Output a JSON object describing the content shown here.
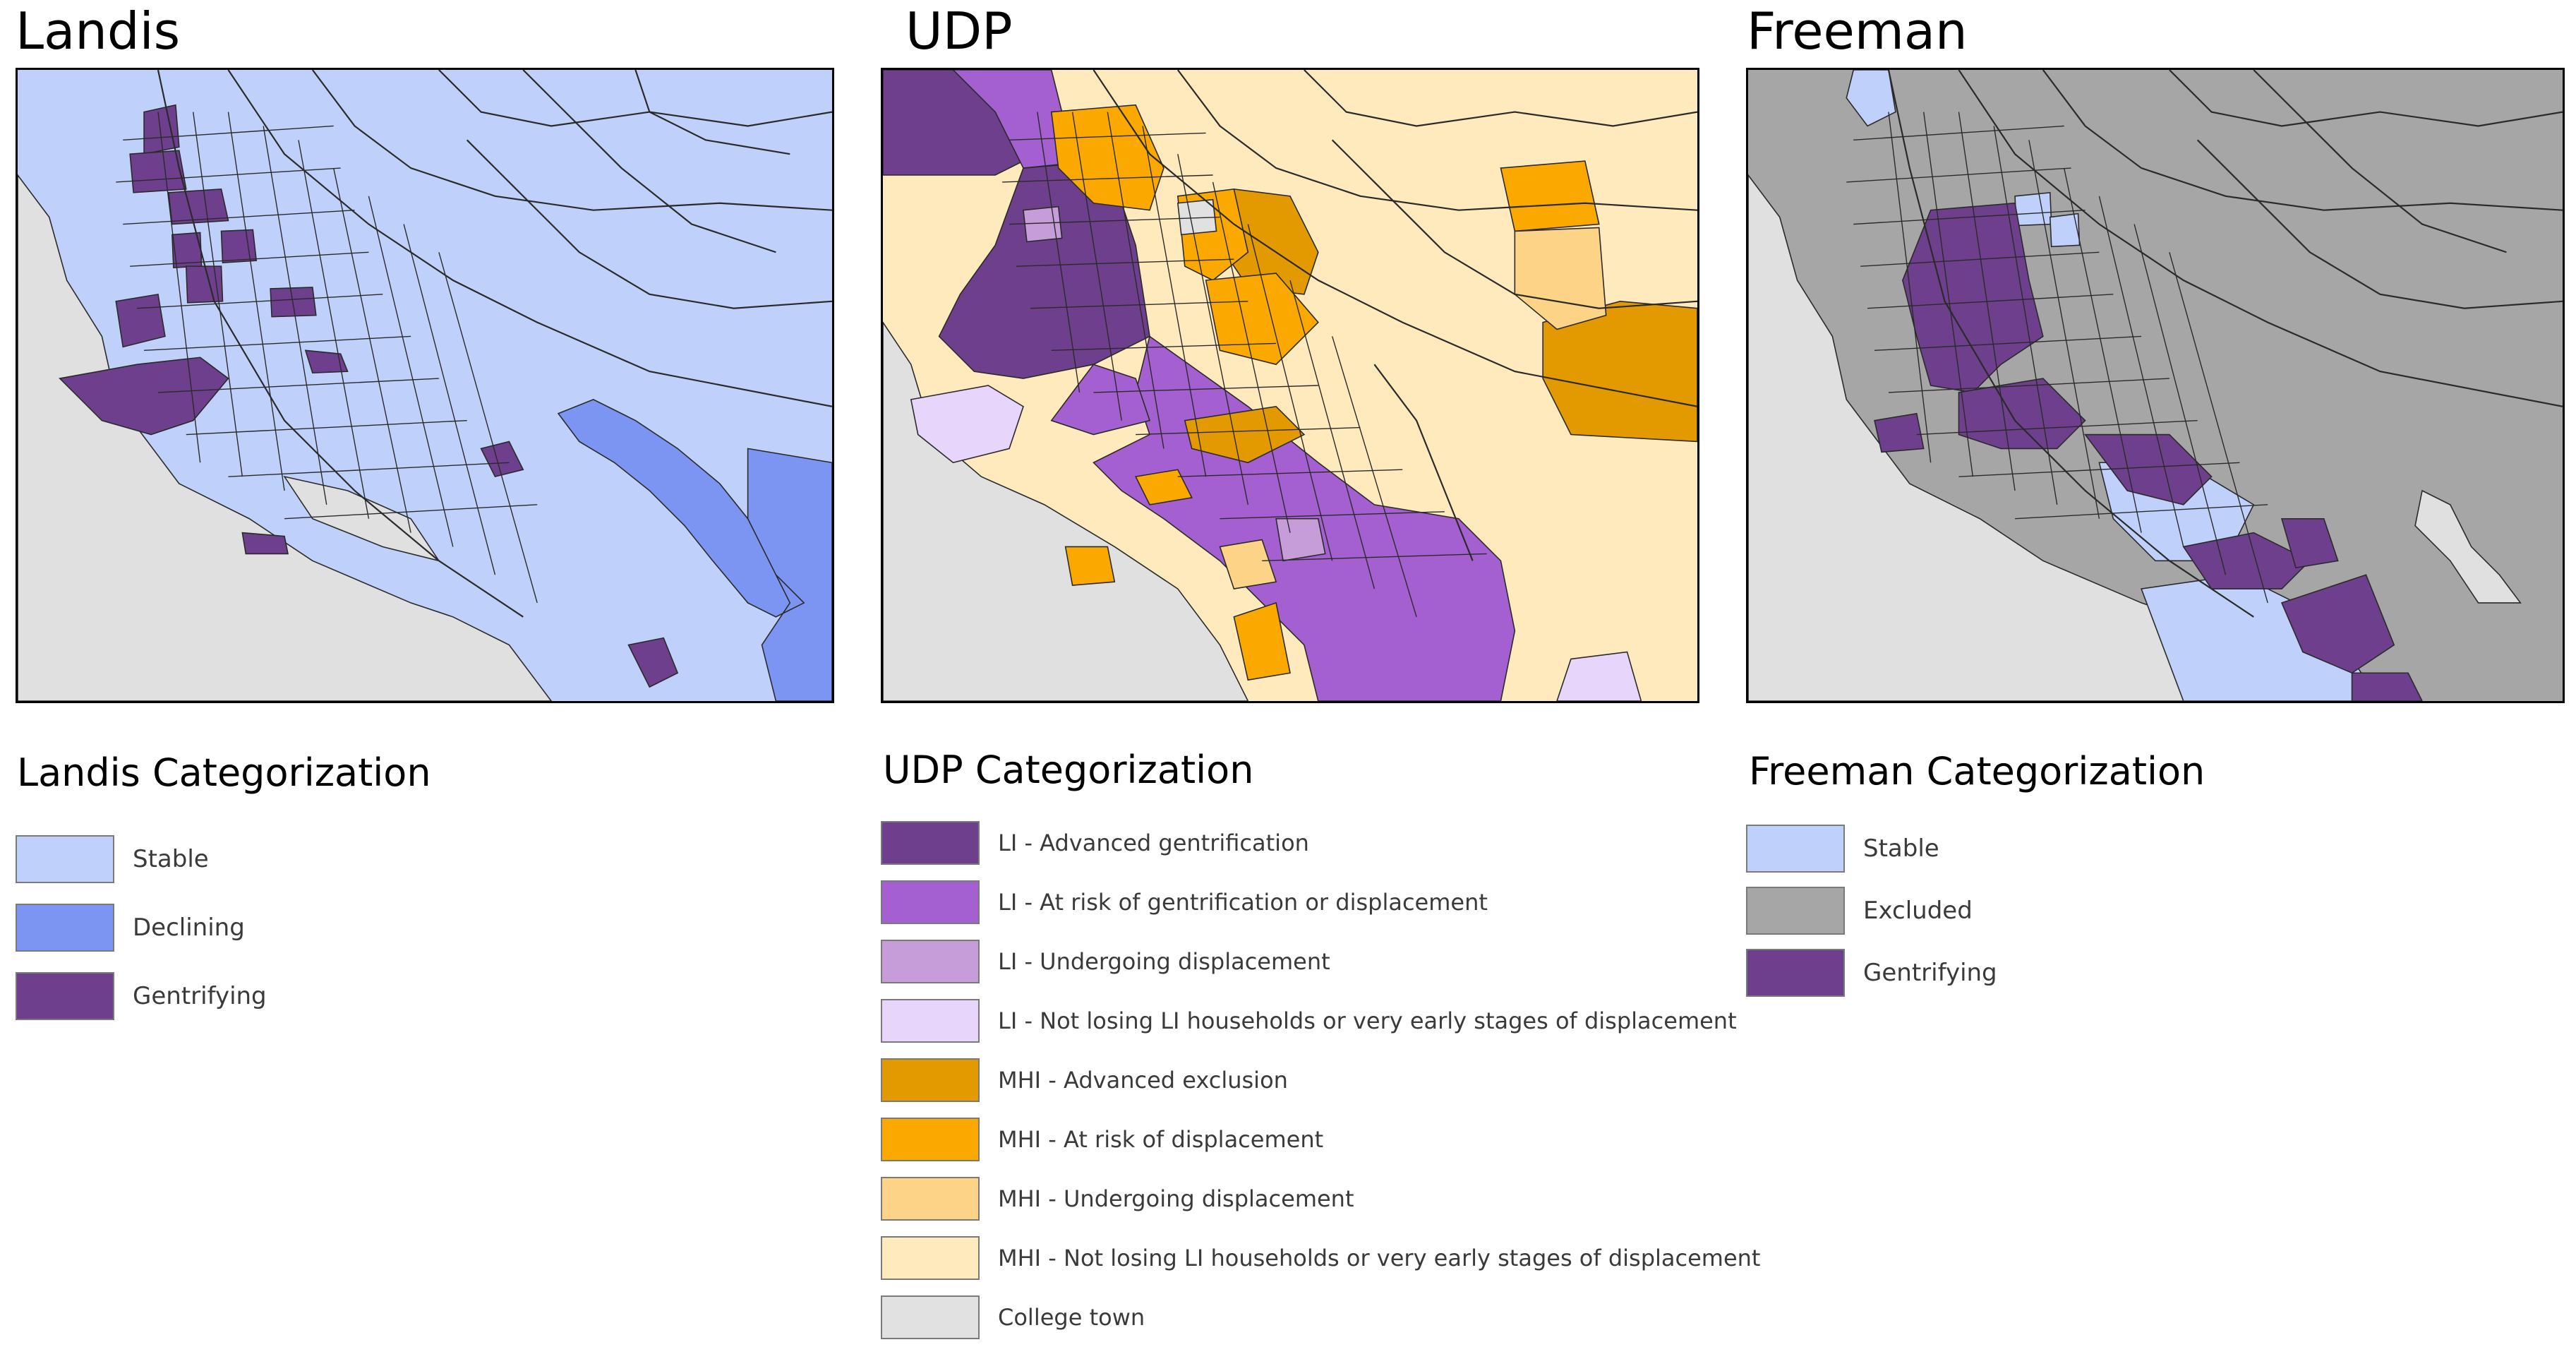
{
  "panels": {
    "landis": {
      "title": "Landis",
      "legend_title": "Landis Categorization",
      "legend": [
        {
          "label": "Stable",
          "color": "#bfd1fb"
        },
        {
          "label": "Declining",
          "color": "#7c94f2"
        },
        {
          "label": "Gentrifying",
          "color": "#6d3f8c"
        }
      ]
    },
    "udp": {
      "title": "UDP",
      "legend_title": "UDP Categorization",
      "legend": [
        {
          "label": "LI - Advanced gentrification",
          "color": "#6d3f8c"
        },
        {
          "label": "LI - At risk of gentrification or displacement",
          "color": "#a45fd0"
        },
        {
          "label": "LI - Undergoing displacement",
          "color": "#c69dd9"
        },
        {
          "label": "LI - Not losing LI households or very early stages of displacement",
          "color": "#e7d5fb"
        },
        {
          "label": "MHI - Advanced exclusion",
          "color": "#e39a00"
        },
        {
          "label": "MHI - At risk of displacement",
          "color": "#fba900"
        },
        {
          "label": "MHI - Undergoing displacement",
          "color": "#fdd388"
        },
        {
          "label": "MHI - Not losing LI households or very early stages of displacement",
          "color": "#feeabd"
        },
        {
          "label": "College town",
          "color": "#e1e1e1"
        }
      ]
    },
    "freeman": {
      "title": "Freeman",
      "legend_title": "Freeman Categorization",
      "legend": [
        {
          "label": "Stable",
          "color": "#bfd1fb"
        },
        {
          "label": "Excluded",
          "color": "#a6a6a6"
        },
        {
          "label": "Gentrifying",
          "color": "#6d3f8c"
        }
      ]
    }
  },
  "map_colors": {
    "water": "#e0e0e0",
    "outline": "#2a2a2a"
  }
}
